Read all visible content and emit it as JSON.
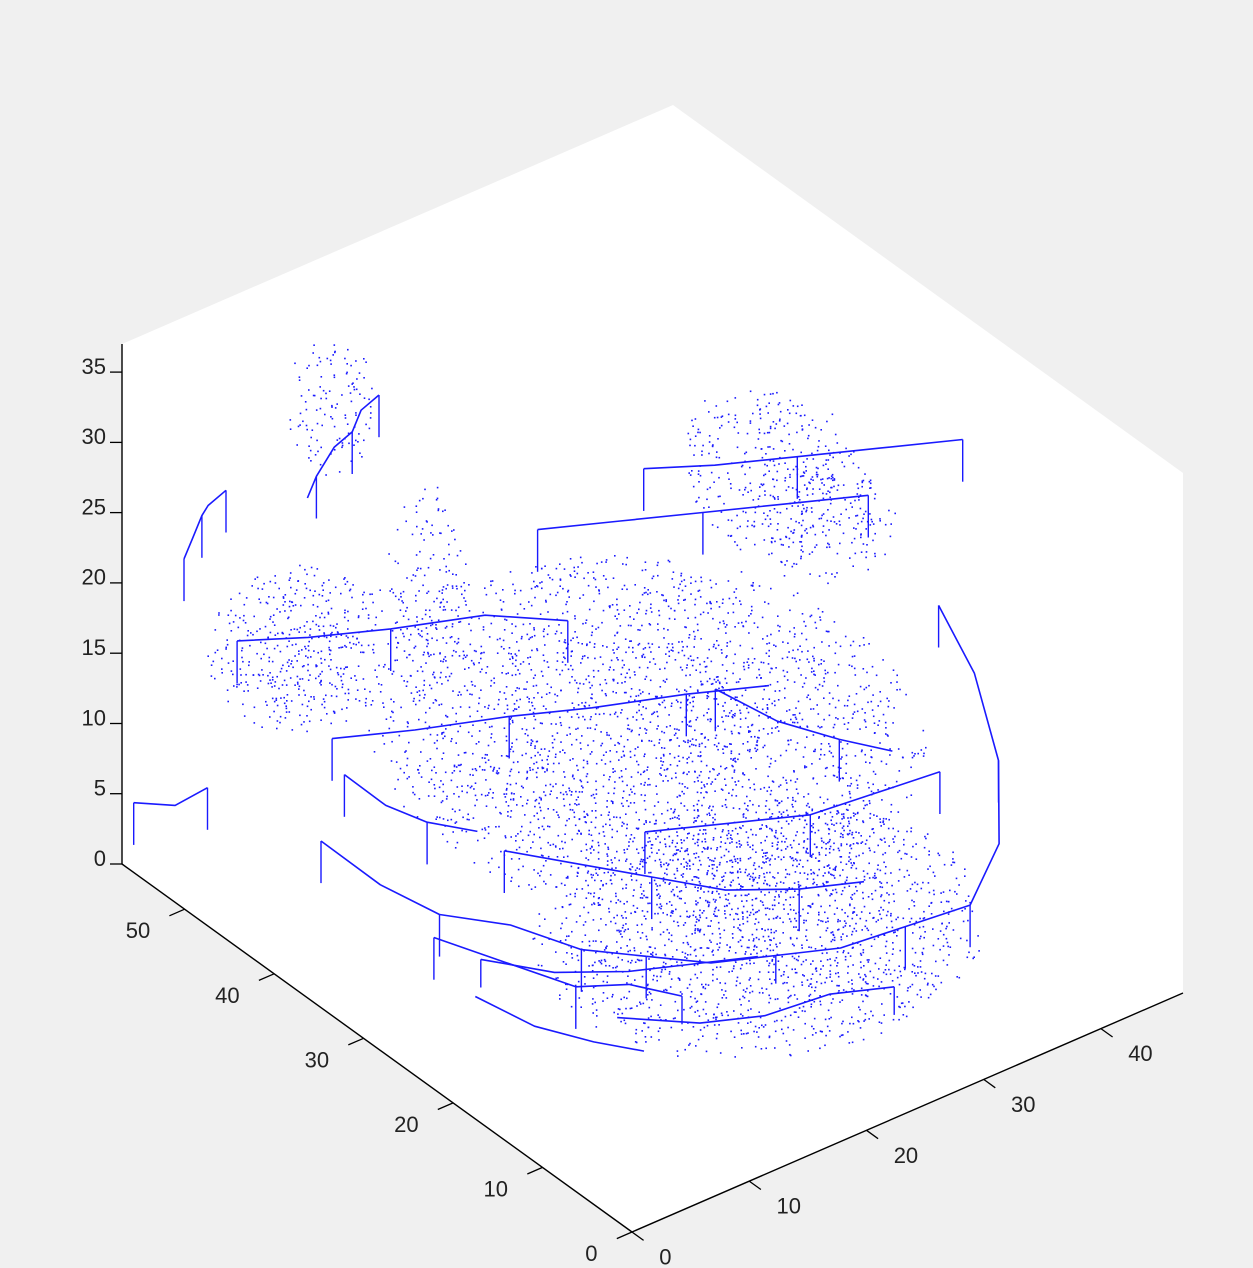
{
  "chart_data": {
    "type": "scatter",
    "projection": "3d-isometric",
    "title": "",
    "xlabel": "",
    "ylabel": "",
    "zlabel": "",
    "grid": false,
    "legend": "none",
    "xlim": [
      0,
      47
    ],
    "ylim": [
      0,
      57
    ],
    "zlim": [
      0,
      37
    ],
    "x_ticks": [
      0,
      10,
      20,
      30,
      40
    ],
    "y_ticks": [
      0,
      10,
      20,
      30,
      40,
      50
    ],
    "z_ticks": [
      0,
      5,
      10,
      15,
      20,
      25,
      30,
      35
    ],
    "colors": {
      "marker": "#1a1aff",
      "axes_bg": "#ffffff",
      "figure_bg": "#f0f0f0",
      "axis": "#000000"
    },
    "series": [
      {
        "kind": "points",
        "marker": ".",
        "clouds": [
          {
            "center": [
              24,
              30,
              13
            ],
            "radii": [
              18,
              21,
              6
            ],
            "count": 2600
          },
          {
            "center": [
              26,
              20,
              3
            ],
            "radii": [
              16,
              15,
              3
            ],
            "count": 1800
          },
          {
            "center": [
              44,
              40,
              19
            ],
            "radii": [
              6,
              10,
              5
            ],
            "count": 500
          },
          {
            "center": [
              10,
              50,
              15
            ],
            "radii": [
              7,
              6,
              5
            ],
            "count": 450
          },
          {
            "center": [
              14,
              52,
              30
            ],
            "radii": [
              3,
              3,
              5
            ],
            "count": 120
          },
          {
            "center": [
              10,
              36,
              25
            ],
            "radii": [
              3,
              3,
              8
            ],
            "count": 180
          }
        ]
      },
      {
        "kind": "lines",
        "polylines": [
          [
            [
              2,
              48,
              30
            ],
            [
              2,
              50,
              28
            ],
            [
              3,
              52,
              26
            ],
            [
              3,
              53,
              24
            ],
            [
              3,
              54,
              22
            ]
          ],
          [
            [
              12,
              44,
              35
            ],
            [
              12,
              46,
              33
            ],
            [
              12,
              47,
              31
            ],
            [
              12,
              49,
              29
            ],
            [
              12,
              51,
              26
            ],
            [
              12,
              52,
              24
            ]
          ],
          [
            [
              6,
              52,
              16
            ],
            [
              9,
              48,
              17
            ],
            [
              13,
              44,
              18
            ],
            [
              18,
              40,
              19
            ],
            [
              22,
              36,
              19
            ]
          ],
          [
            [
              8,
              44,
              12
            ],
            [
              12,
              40,
              13
            ],
            [
              17,
              36,
              14
            ],
            [
              21,
              32,
              15
            ],
            [
              26,
              28,
              16
            ],
            [
              30,
              24,
              17
            ]
          ],
          [
            [
              24,
              42,
              22
            ],
            [
              28,
              38,
              23
            ],
            [
              32,
              34,
              24
            ],
            [
              36,
              30,
              25
            ],
            [
              40,
              26,
              26
            ]
          ],
          [
            [
              30,
              38,
              26
            ],
            [
              33,
              34,
              27
            ],
            [
              37,
              30,
              28
            ],
            [
              41,
              26,
              29
            ],
            [
              45,
              22,
              30
            ]
          ],
          [
            [
              4,
              40,
              8
            ],
            [
              6,
              36,
              6
            ],
            [
              8,
              32,
              5
            ],
            [
              11,
              28,
              5
            ],
            [
              14,
              24,
              4
            ],
            [
              18,
              22,
              3
            ]
          ],
          [
            [
              18,
              22,
              3
            ],
            [
              22,
              20,
              2
            ],
            [
              26,
              18,
              2
            ],
            [
              30,
              16,
              2
            ],
            [
              34,
              14,
              3
            ],
            [
              38,
              12,
              4
            ]
          ],
          [
            [
              38,
              12,
              4
            ],
            [
              42,
              14,
              6
            ],
            [
              45,
              18,
              9
            ],
            [
              46,
              22,
              13
            ],
            [
              46,
              26,
              16
            ]
          ],
          [
            [
              6,
              30,
              5
            ],
            [
              9,
              26,
              4
            ],
            [
              12,
              22,
              3
            ],
            [
              15,
              20,
              3
            ],
            [
              18,
              18,
              2
            ]
          ],
          [
            [
              10,
              30,
              2
            ],
            [
              14,
              27,
              1
            ],
            [
              18,
              24,
              1
            ],
            [
              22,
              22,
              1
            ],
            [
              26,
              20,
              1
            ]
          ],
          [
            [
              14,
              20,
              1
            ],
            [
              18,
              16,
              1
            ],
            [
              22,
              14,
              1
            ],
            [
              26,
              12,
              2
            ],
            [
              30,
              10,
              2
            ]
          ],
          [
            [
              12,
              30,
              9
            ],
            [
              16,
              27,
              8
            ],
            [
              20,
              24,
              7
            ],
            [
              24,
              21,
              6
            ],
            [
              28,
              18,
              6
            ],
            [
              32,
              16,
              6
            ]
          ],
          [
            [
              24,
              30,
              6
            ],
            [
              28,
              26,
              7
            ],
            [
              32,
              22,
              8
            ],
            [
              36,
              20,
              9
            ],
            [
              40,
              18,
              10
            ]
          ],
          [
            [
              8,
              28,
              1
            ],
            [
              10,
              24,
              0
            ],
            [
              12,
              20,
              0
            ],
            [
              14,
              17,
              0
            ]
          ],
          [
            [
              1,
              57,
              4
            ],
            [
              3,
              55,
              4
            ],
            [
              5,
              54,
              5
            ]
          ],
          [
            [
              6,
              40,
              12
            ],
            [
              8,
              38,
              10
            ],
            [
              10,
              36,
              9
            ],
            [
              12,
              33,
              9
            ]
          ],
          [
            [
              30,
              30,
              14
            ],
            [
              33,
              27,
              12
            ],
            [
              36,
              24,
              11
            ],
            [
              39,
              22,
              10
            ]
          ]
        ]
      }
    ]
  }
}
